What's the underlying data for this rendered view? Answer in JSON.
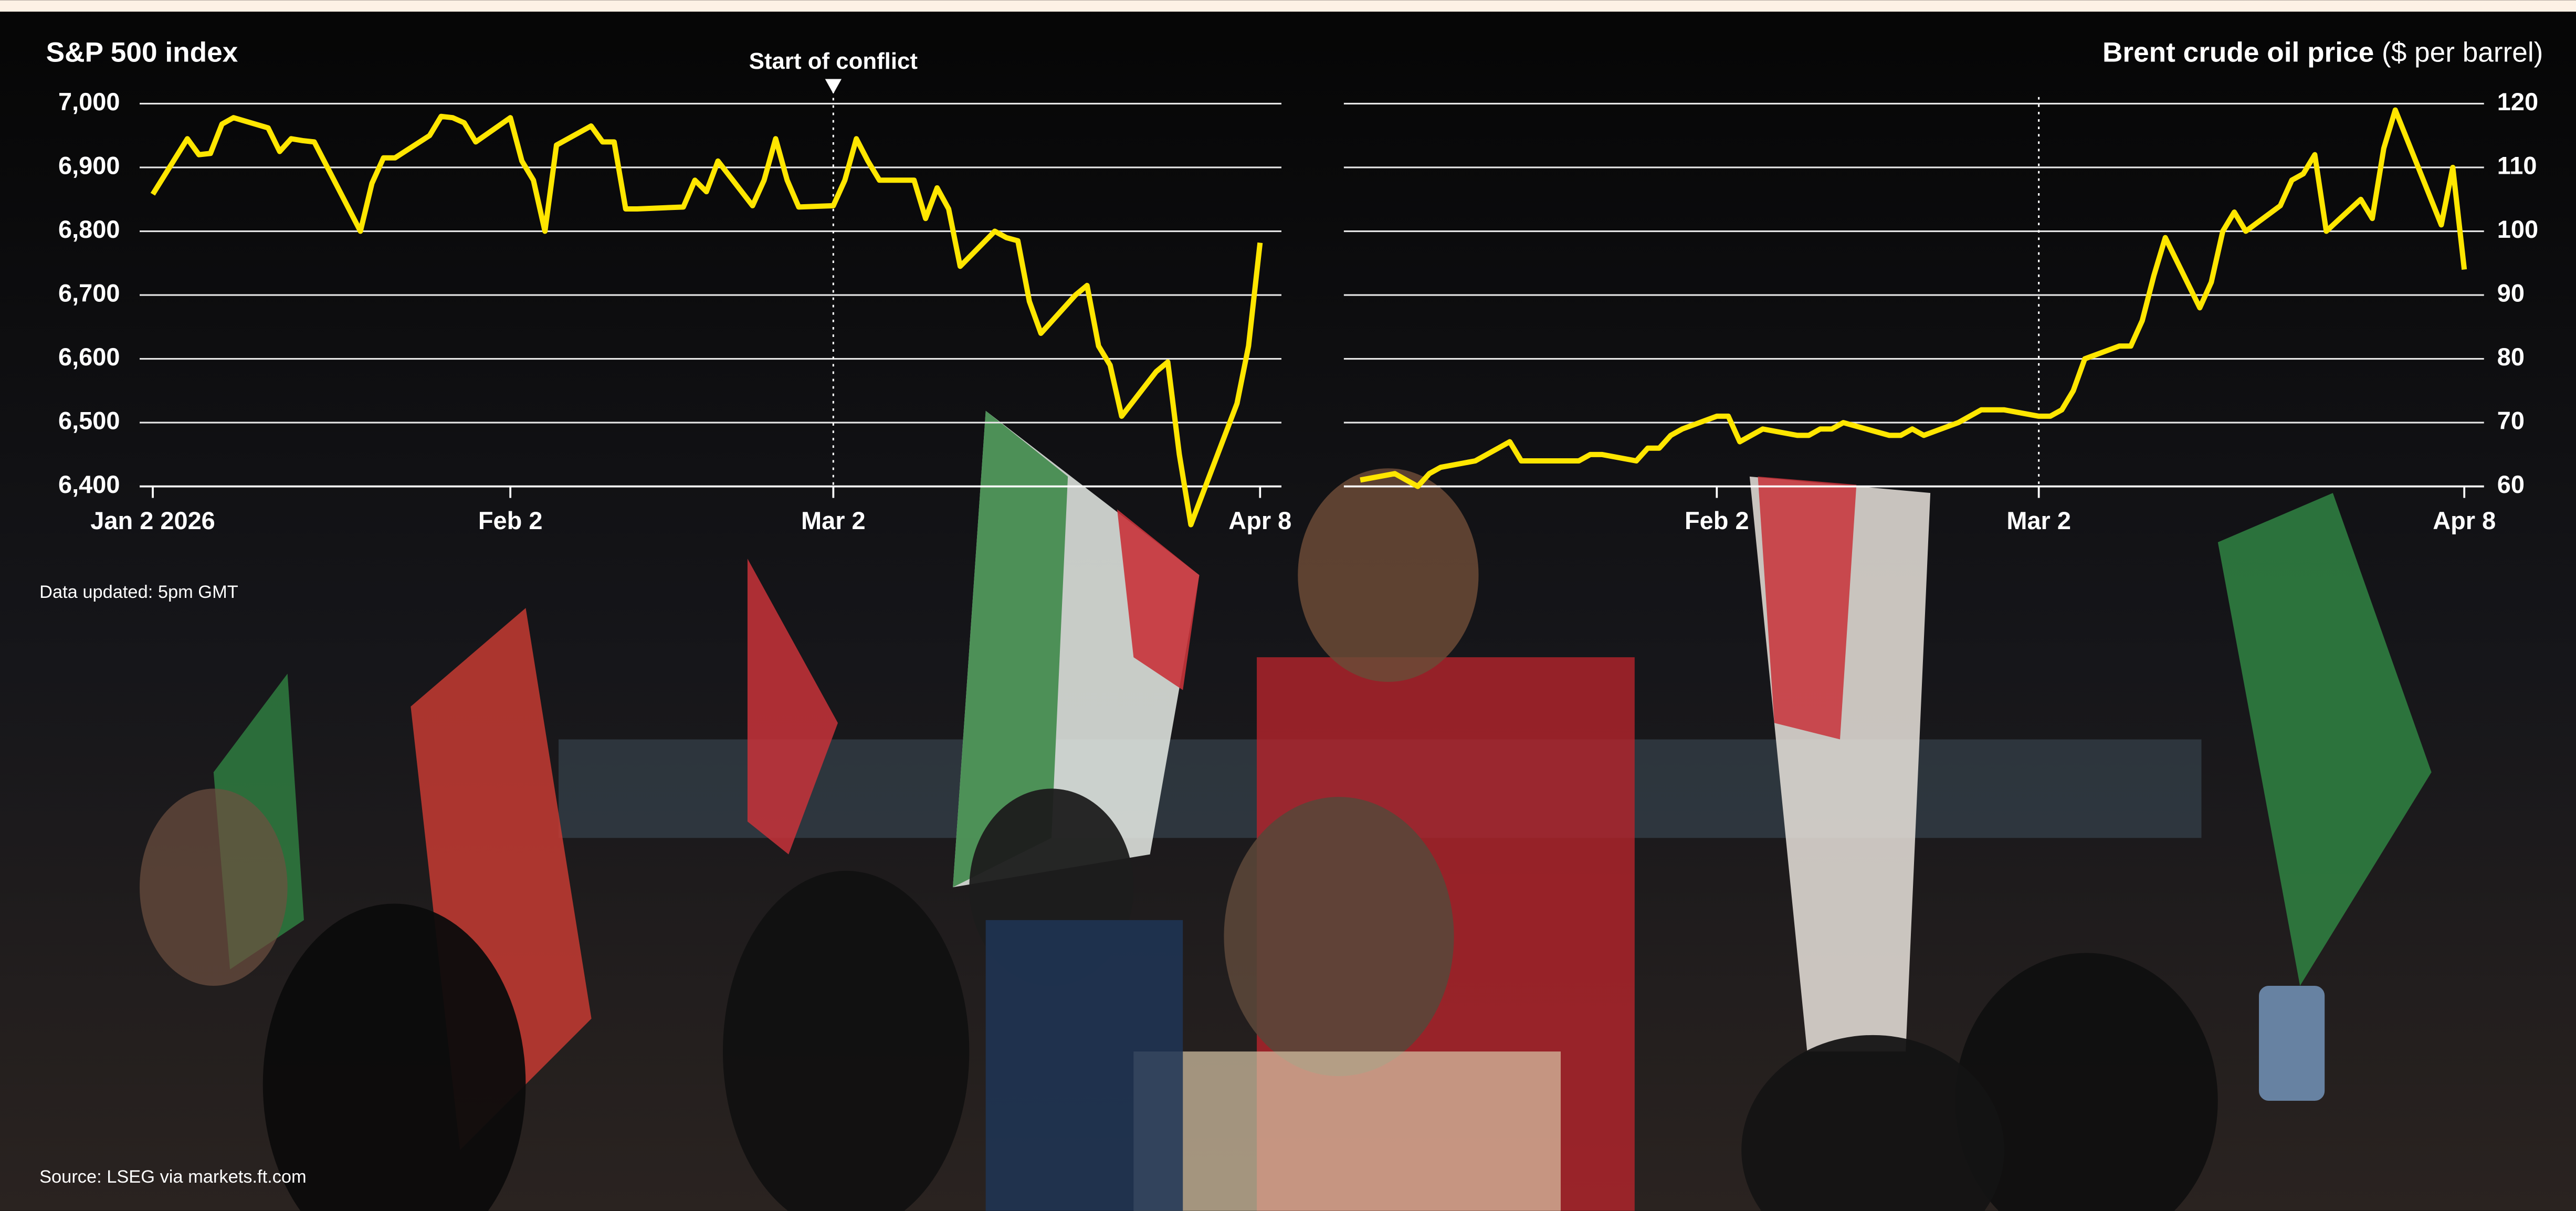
{
  "chart_data": [
    {
      "type": "line",
      "title": "S&P 500 index",
      "color": "#ffe600",
      "x": [
        "2026-01-02",
        "2026-01-05",
        "2026-01-06",
        "2026-01-07",
        "2026-01-08",
        "2026-01-09",
        "2026-01-12",
        "2026-01-13",
        "2026-01-14",
        "2026-01-15",
        "2026-01-16",
        "2026-01-20",
        "2026-01-21",
        "2026-01-22",
        "2026-01-23",
        "2026-01-26",
        "2026-01-27",
        "2026-01-28",
        "2026-01-29",
        "2026-01-30",
        "2026-02-02",
        "2026-02-03",
        "2026-02-04",
        "2026-02-05",
        "2026-02-06",
        "2026-02-09",
        "2026-02-10",
        "2026-02-11",
        "2026-02-12",
        "2026-02-13",
        "2026-02-17",
        "2026-02-18",
        "2026-02-19",
        "2026-02-20",
        "2026-02-23",
        "2026-02-24",
        "2026-02-25",
        "2026-02-26",
        "2026-02-27",
        "2026-03-02",
        "2026-03-03",
        "2026-03-04",
        "2026-03-05",
        "2026-03-06",
        "2026-03-09",
        "2026-03-10",
        "2026-03-11",
        "2026-03-12",
        "2026-03-13",
        "2026-03-16",
        "2026-03-17",
        "2026-03-18",
        "2026-03-19",
        "2026-03-20",
        "2026-03-23",
        "2026-03-24",
        "2026-03-25",
        "2026-03-26",
        "2026-03-27",
        "2026-03-30",
        "2026-03-31",
        "2026-04-01",
        "2026-04-02",
        "2026-04-06",
        "2026-04-07",
        "2026-04-08"
      ],
      "values": [
        6858,
        6945,
        6920,
        6922,
        6968,
        6978,
        6962,
        6925,
        6945,
        6942,
        6940,
        6800,
        6875,
        6915,
        6915,
        6950,
        6980,
        6978,
        6970,
        6940,
        6978,
        6910,
        6880,
        6800,
        6935,
        6965,
        6940,
        6940,
        6835,
        6835,
        6838,
        6880,
        6862,
        6910,
        6840,
        6880,
        6945,
        6880,
        6838,
        6840,
        6880,
        6945,
        6910,
        6880,
        6880,
        6820,
        6868,
        6835,
        6745,
        6800,
        6790,
        6785,
        6690,
        6640,
        6700,
        6715,
        6620,
        6590,
        6510,
        6580,
        6595,
        6450,
        6340,
        6530,
        6620,
        6782
      ],
      "xlim": [
        "2026-01-02",
        "2026-04-08"
      ],
      "xticks": [
        {
          "value": "2026-01-02",
          "label": "Jan 2 2026"
        },
        {
          "value": "2026-02-02",
          "label": "Feb 2"
        },
        {
          "value": "2026-03-02",
          "label": "Mar 2"
        },
        {
          "value": "2026-04-08",
          "label": "Apr 8"
        }
      ],
      "ylim": [
        6400,
        7000
      ],
      "yticks": [
        {
          "value": 6400,
          "label": "6,400"
        },
        {
          "value": 6500,
          "label": "6,500"
        },
        {
          "value": 6600,
          "label": "6,600"
        },
        {
          "value": 6700,
          "label": "6,700"
        },
        {
          "value": 6800,
          "label": "6,800"
        },
        {
          "value": 6900,
          "label": "6,900"
        },
        {
          "value": 7000,
          "label": "7,000"
        }
      ],
      "event": {
        "x": "2026-03-02",
        "label": "Start of conflict"
      },
      "grid": true
    },
    {
      "type": "line",
      "title": "Brent crude oil price",
      "subtitle": "($ per barrel)",
      "color": "#ffe600",
      "x": [
        "2026-01-02",
        "2026-01-05",
        "2026-01-06",
        "2026-01-07",
        "2026-01-08",
        "2026-01-09",
        "2026-01-12",
        "2026-01-13",
        "2026-01-14",
        "2026-01-15",
        "2026-01-16",
        "2026-01-20",
        "2026-01-21",
        "2026-01-22",
        "2026-01-23",
        "2026-01-26",
        "2026-01-27",
        "2026-01-28",
        "2026-01-29",
        "2026-01-30",
        "2026-02-02",
        "2026-02-03",
        "2026-02-04",
        "2026-02-05",
        "2026-02-06",
        "2026-02-09",
        "2026-02-10",
        "2026-02-11",
        "2026-02-12",
        "2026-02-13",
        "2026-02-17",
        "2026-02-18",
        "2026-02-19",
        "2026-02-20",
        "2026-02-23",
        "2026-02-24",
        "2026-02-25",
        "2026-02-26",
        "2026-02-27",
        "2026-03-02",
        "2026-03-03",
        "2026-03-04",
        "2026-03-05",
        "2026-03-06",
        "2026-03-09",
        "2026-03-10",
        "2026-03-11",
        "2026-03-12",
        "2026-03-13",
        "2026-03-16",
        "2026-03-17",
        "2026-03-18",
        "2026-03-19",
        "2026-03-20",
        "2026-03-23",
        "2026-03-24",
        "2026-03-25",
        "2026-03-26",
        "2026-03-27",
        "2026-03-30",
        "2026-03-31",
        "2026-04-01",
        "2026-04-02",
        "2026-04-06",
        "2026-04-07",
        "2026-04-08"
      ],
      "values": [
        61,
        62,
        61,
        60,
        62,
        63,
        64,
        65,
        66,
        67,
        64,
        64,
        64,
        65,
        65,
        64,
        66,
        66,
        68,
        69,
        71,
        71,
        67,
        68,
        69,
        68,
        68,
        69,
        69,
        70,
        68,
        68,
        69,
        68,
        70,
        71,
        72,
        72,
        72,
        71,
        71,
        72,
        75,
        80,
        82,
        82,
        86,
        93,
        99,
        88,
        92,
        100,
        103,
        100,
        104,
        108,
        109,
        112,
        100,
        105,
        102,
        113,
        119,
        101,
        110,
        94
      ],
      "xlim": [
        "2026-01-02",
        "2026-04-08"
      ],
      "xticks": [
        {
          "value": "2026-02-02",
          "label": "Feb 2"
        },
        {
          "value": "2026-03-02",
          "label": "Mar 2"
        },
        {
          "value": "2026-04-08",
          "label": "Apr 8"
        }
      ],
      "ylim": [
        60,
        120
      ],
      "yticks": [
        60,
        70,
        80,
        90,
        100,
        110,
        120
      ],
      "event": {
        "x": "2026-03-02"
      },
      "grid": true
    }
  ],
  "notes": {
    "updated": "Data updated: 5pm GMT",
    "source": "Source: LSEG via markets.ft.com"
  }
}
